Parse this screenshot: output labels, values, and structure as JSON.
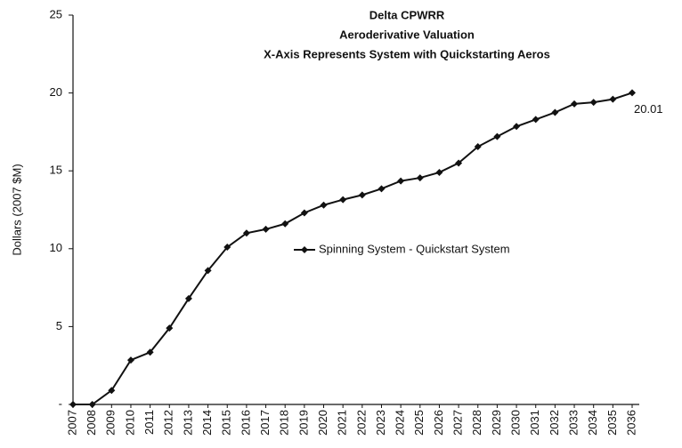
{
  "chart_data": {
    "type": "line",
    "title": [
      "Delta CPWRR",
      "Aeroderivative Valuation",
      "X-Axis Represents System with Quickstarting Aeros"
    ],
    "y_label": "Dollars (2007 $M)",
    "categories": [
      "2007",
      "2008",
      "2009",
      "2010",
      "2011",
      "2012",
      "2013",
      "2014",
      "2015",
      "2016",
      "2017",
      "2018",
      "2019",
      "2020",
      "2021",
      "2022",
      "2023",
      "2024",
      "2025",
      "2026",
      "2027",
      "2028",
      "2029",
      "2030",
      "2031",
      "2032",
      "2033",
      "2034",
      "2035",
      "2036"
    ],
    "series": [
      {
        "name": "Spinning System - Quickstart System",
        "color": "#111111",
        "values": [
          0,
          0,
          0.9,
          2.85,
          3.35,
          4.9,
          6.8,
          8.6,
          10.1,
          11.0,
          11.25,
          11.6,
          12.3,
          12.8,
          13.15,
          13.45,
          13.85,
          14.35,
          14.55,
          14.9,
          15.5,
          16.55,
          17.2,
          17.85,
          18.3,
          18.75,
          19.3,
          19.4,
          19.6,
          20.01
        ]
      }
    ],
    "ylim": [
      0,
      25
    ],
    "yticks": [
      {
        "value": 0,
        "label": "-"
      },
      5,
      10,
      15,
      20,
      25
    ],
    "grid": false,
    "legend": "center"
  }
}
